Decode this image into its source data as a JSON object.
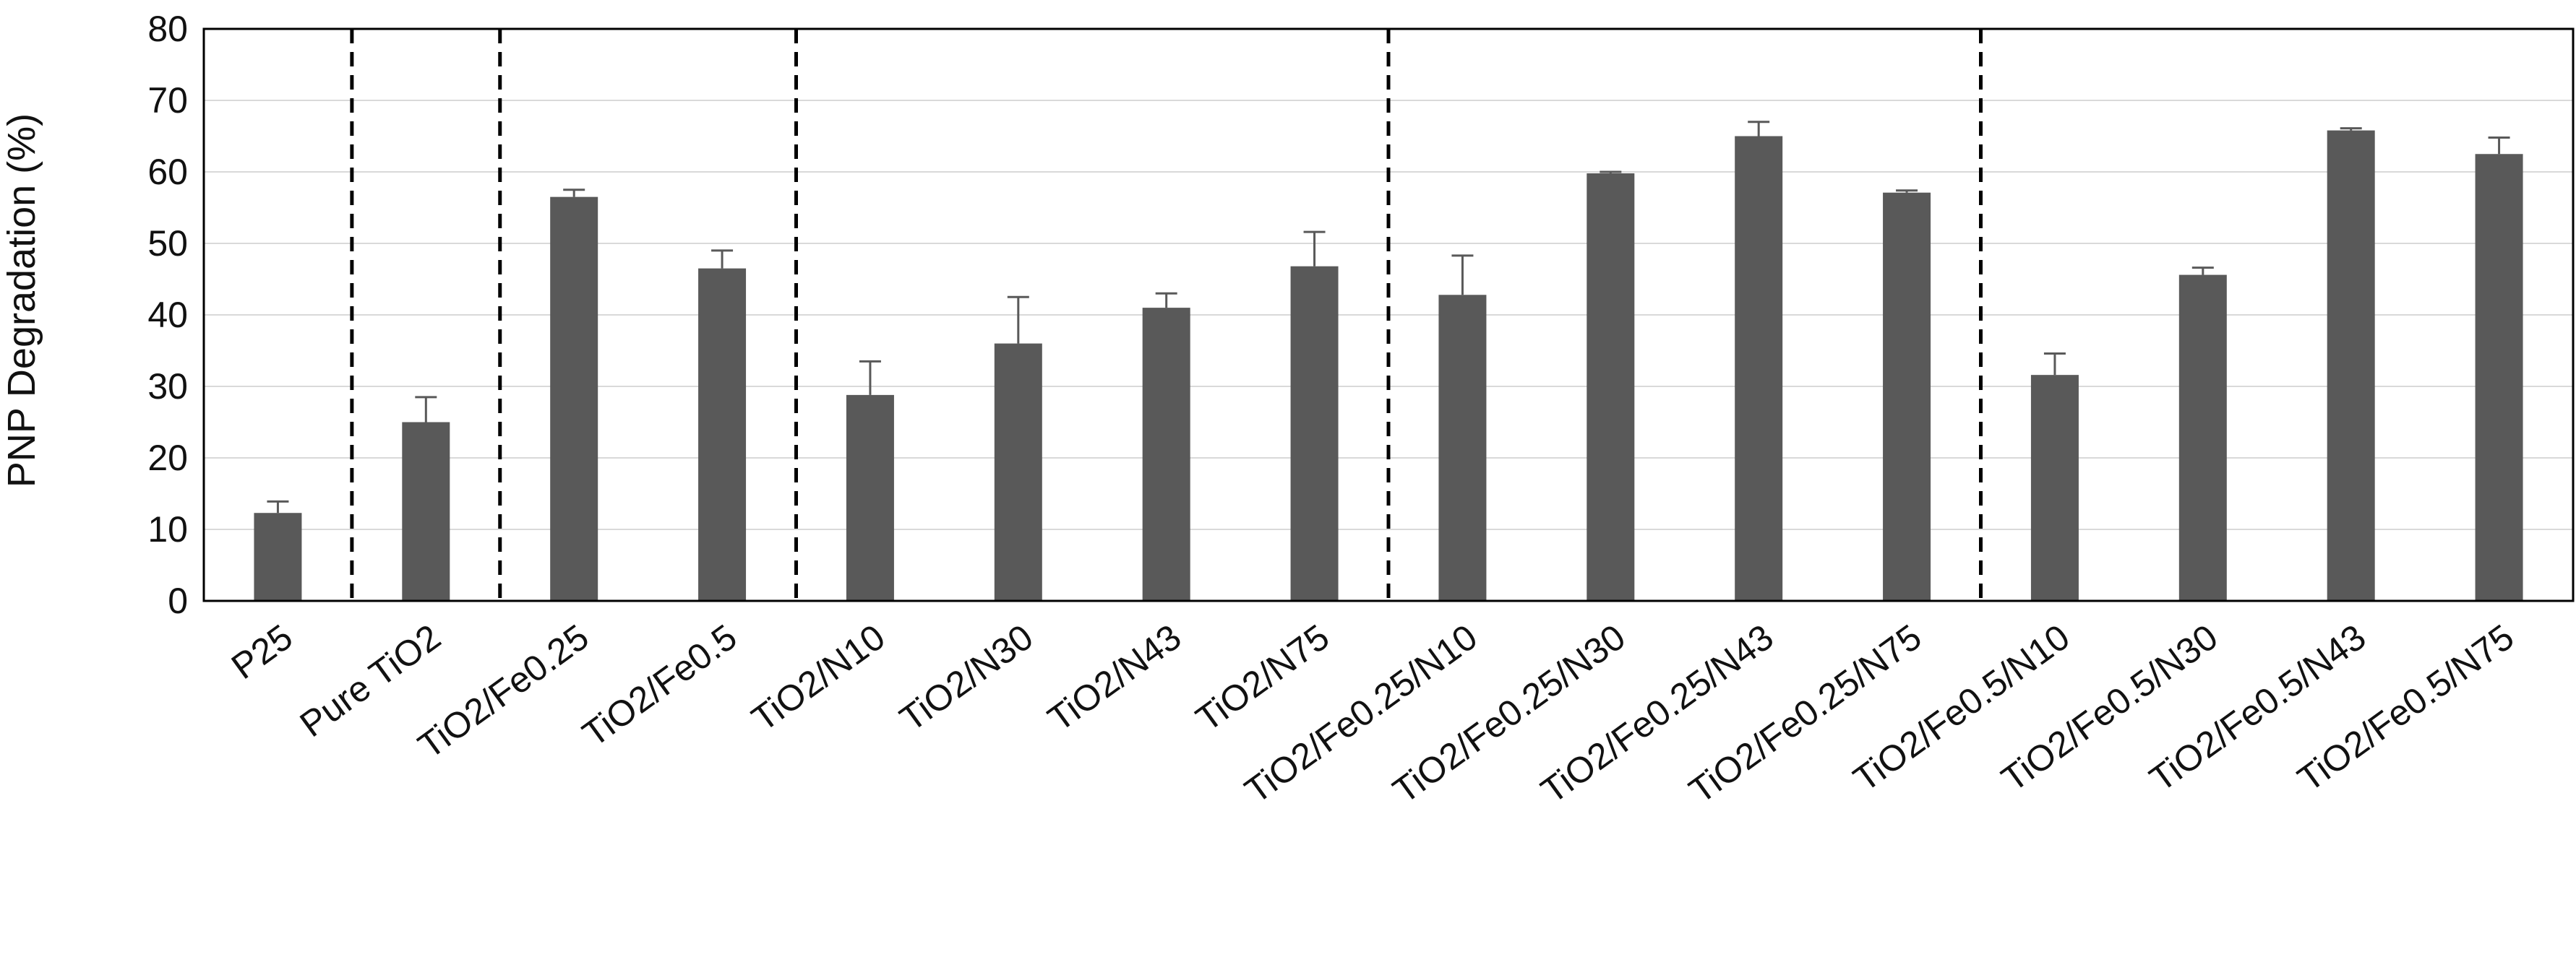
{
  "chart_data": {
    "type": "bar",
    "title": "",
    "xlabel": "",
    "ylabel": "PNP Degradation (%)",
    "ylim": [
      0,
      80
    ],
    "yticks": [
      0,
      10,
      20,
      30,
      40,
      50,
      60,
      70,
      80
    ],
    "grid": true,
    "legend": "none",
    "categories": [
      "P25",
      "Pure TiO2",
      "TiO2/Fe0.25",
      "TiO2/Fe0.5",
      "TiO2/N10",
      "TiO2/N30",
      "TiO2/N43",
      "TiO2/N75",
      "TiO2/Fe0.25/N10",
      "TiO2/Fe0.25/N30",
      "TiO2/Fe0.25/N43",
      "TiO2/Fe0.25/N75",
      "TiO2/Fe0.5/N10",
      "TiO2/Fe0.5/N30",
      "TiO2/Fe0.5/N43",
      "TiO2/Fe0.5/N75"
    ],
    "values": [
      12.3,
      25.0,
      56.5,
      46.5,
      28.8,
      36.0,
      41.0,
      46.8,
      42.8,
      59.8,
      65.0,
      57.1,
      31.6,
      45.6,
      65.8,
      62.5
    ],
    "errors": [
      1.6,
      3.5,
      1.0,
      2.5,
      4.7,
      6.5,
      2.0,
      4.8,
      5.5,
      0.2,
      2.0,
      0.3,
      3.0,
      1.0,
      0.3,
      2.3
    ],
    "group_separators_after_index": [
      0,
      1,
      3,
      7,
      11
    ],
    "colors": {
      "bar": "#595959",
      "error_bar": "#595959",
      "grid": "#d9d9d9",
      "axis": "#000000",
      "separator": "#000000"
    }
  }
}
